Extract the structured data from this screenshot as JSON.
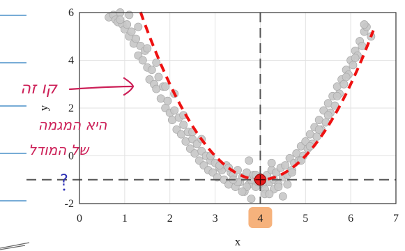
{
  "chart_data": {
    "type": "scatter",
    "xlabel": "x",
    "ylabel": "y",
    "xlim": [
      0,
      7
    ],
    "ylim": [
      -2,
      6
    ],
    "xticks": [
      "0",
      "1",
      "2",
      "3",
      "4",
      "5",
      "6",
      "7"
    ],
    "yticks": [
      "-2",
      "0",
      "2",
      "4",
      "6"
    ],
    "grid": true,
    "highlighted_xtick": "4",
    "minimum_point": {
      "x": 4,
      "y": -1
    },
    "reference_lines": {
      "vertical_x": 4,
      "horizontal_y": -1
    },
    "fit_curve": {
      "form": "parabola",
      "vertex_x": 4,
      "vertex_y": -1,
      "a": 1.0
    },
    "series": [
      {
        "kind": "scatter",
        "x": [
          0.65,
          0.75,
          0.8,
          0.85,
          0.9,
          0.95,
          1.0,
          1.05,
          1.1,
          1.15,
          1.2,
          1.25,
          1.3,
          1.35,
          1.4,
          1.45,
          1.5,
          1.55,
          1.6,
          1.65,
          1.7,
          1.75,
          1.8,
          1.85,
          1.9,
          1.95,
          2.0,
          2.05,
          2.1,
          2.15,
          2.2,
          2.25,
          2.3,
          2.35,
          2.4,
          2.45,
          2.5,
          2.55,
          2.6,
          2.65,
          2.7,
          2.75,
          2.8,
          2.85,
          2.9,
          2.95,
          3.0,
          3.05,
          3.1,
          3.15,
          3.2,
          3.25,
          3.3,
          3.35,
          3.4,
          3.45,
          3.5,
          3.55,
          3.6,
          3.65,
          3.7,
          3.75,
          3.8,
          3.85,
          3.9,
          3.95,
          4.0,
          4.05,
          4.1,
          4.15,
          4.2,
          4.25,
          4.3,
          4.35,
          4.4,
          4.45,
          4.5,
          4.55,
          4.6,
          4.65,
          4.7,
          4.75,
          4.8,
          4.85,
          4.9,
          4.95,
          5.0,
          5.05,
          5.1,
          5.15,
          5.2,
          5.25,
          5.3,
          5.35,
          5.4,
          5.45,
          5.5,
          5.55,
          5.6,
          5.65,
          5.7,
          5.75,
          5.8,
          5.85,
          5.9,
          5.95,
          6.0,
          6.05,
          6.1,
          6.15,
          6.2,
          6.25,
          6.3,
          6.35,
          6.45,
          0.9,
          1.1,
          1.3,
          1.5,
          1.7,
          1.9,
          2.1,
          2.3,
          2.5,
          2.7,
          2.9,
          3.1,
          3.3,
          3.5,
          3.7,
          3.9,
          4.1,
          4.3,
          4.5,
          4.7,
          4.9,
          5.1,
          5.3,
          5.5,
          5.7,
          5.9,
          6.1,
          6.3,
          3.6,
          3.8,
          4.2,
          4.4,
          3.4,
          4.6,
          3.75,
          4.25
        ],
        "y": [
          5.8,
          5.9,
          5.7,
          5.6,
          6.0,
          5.5,
          5.3,
          5.5,
          5.0,
          5.2,
          4.7,
          4.9,
          4.2,
          4.6,
          4.0,
          4.4,
          3.7,
          3.2,
          3.6,
          3.0,
          2.8,
          3.3,
          2.4,
          2.9,
          2.0,
          2.3,
          1.8,
          1.5,
          1.9,
          1.1,
          1.6,
          0.9,
          1.3,
          0.6,
          1.0,
          0.3,
          0.7,
          0.1,
          0.5,
          -0.2,
          0.2,
          -0.4,
          0.0,
          -0.6,
          -0.2,
          -0.7,
          -0.3,
          -0.9,
          -0.5,
          -0.6,
          -1.0,
          -0.4,
          -1.2,
          -0.7,
          -0.8,
          -1.3,
          -0.6,
          -1.1,
          -0.9,
          -1.5,
          -0.7,
          -1.2,
          -1.0,
          -0.8,
          -1.3,
          -1.1,
          -0.9,
          -1.2,
          -1.4,
          -0.8,
          -1.1,
          -0.6,
          -1.0,
          -0.7,
          -1.2,
          -0.5,
          -0.9,
          -0.4,
          -0.8,
          -0.1,
          -0.6,
          -0.3,
          0.1,
          -0.2,
          0.4,
          0.0,
          0.6,
          0.3,
          0.9,
          0.5,
          1.2,
          0.8,
          1.5,
          1.1,
          1.9,
          1.4,
          2.2,
          1.8,
          2.5,
          2.1,
          2.9,
          2.6,
          3.2,
          3.0,
          3.6,
          3.4,
          4.0,
          3.8,
          4.4,
          4.2,
          4.8,
          4.6,
          5.2,
          5.4,
          5.0,
          5.7,
          5.9,
          5.4,
          4.5,
          3.9,
          2.9,
          2.6,
          1.7,
          1.0,
          0.7,
          0.0,
          -0.4,
          -0.5,
          -1.1,
          -1.3,
          -0.8,
          -1.6,
          -1.4,
          -1.7,
          -0.7,
          -0.2,
          0.4,
          1.1,
          1.7,
          2.5,
          3.3,
          4.1,
          5.5,
          -1.5,
          -1.8,
          -1.6,
          -1.3,
          -1.0,
          -1.2,
          -0.2,
          -0.3
        ]
      },
      {
        "kind": "fit-line",
        "style": "dashed",
        "color": "#ee1111"
      }
    ]
  },
  "annotations": {
    "arrow_label": "קו זה",
    "note_line1": "היא המגמה",
    "note_line2": "של המודל",
    "question_mark": "?"
  },
  "colors": {
    "points": "#c8c8c8",
    "points_edge": "#a9a9a9",
    "fit_line": "#ee1111",
    "ink": "#cc1f57",
    "question": "#2b2fb5",
    "highlight": "#f6b27c",
    "margin_lines": "#4a90c8"
  }
}
